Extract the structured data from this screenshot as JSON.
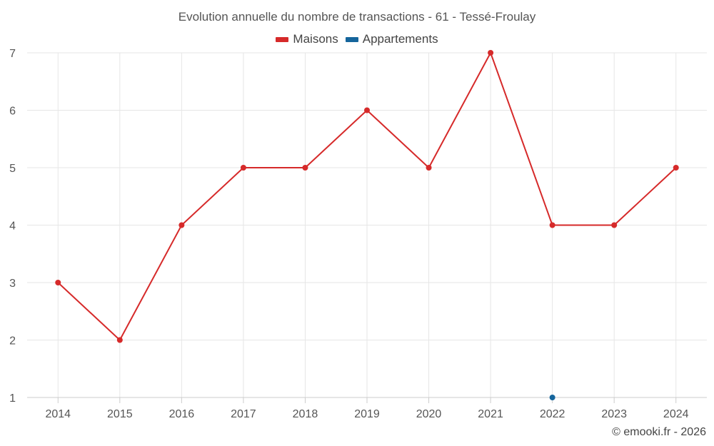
{
  "chart_data": {
    "type": "line",
    "title": "Evolution annuelle du nombre de transactions - 61 - Tessé-Froulay",
    "xlabel": "",
    "ylabel": "",
    "x": [
      "2014",
      "2015",
      "2016",
      "2017",
      "2018",
      "2019",
      "2020",
      "2021",
      "2022",
      "2023",
      "2024"
    ],
    "ylim": [
      1,
      7
    ],
    "yticks": [
      "1",
      "2",
      "3",
      "4",
      "5",
      "6",
      "7"
    ],
    "grid": true,
    "legend_position": "top-center",
    "series": [
      {
        "name": "Maisons",
        "color": "#d62a2a",
        "values": [
          3,
          2,
          4,
          5,
          5,
          6,
          5,
          7,
          4,
          4,
          5
        ]
      },
      {
        "name": "Appartements",
        "color": "#15659c",
        "values": [
          null,
          null,
          null,
          null,
          null,
          null,
          null,
          null,
          1,
          null,
          null
        ]
      }
    ]
  },
  "credit": "© emooki.fr - 2026"
}
